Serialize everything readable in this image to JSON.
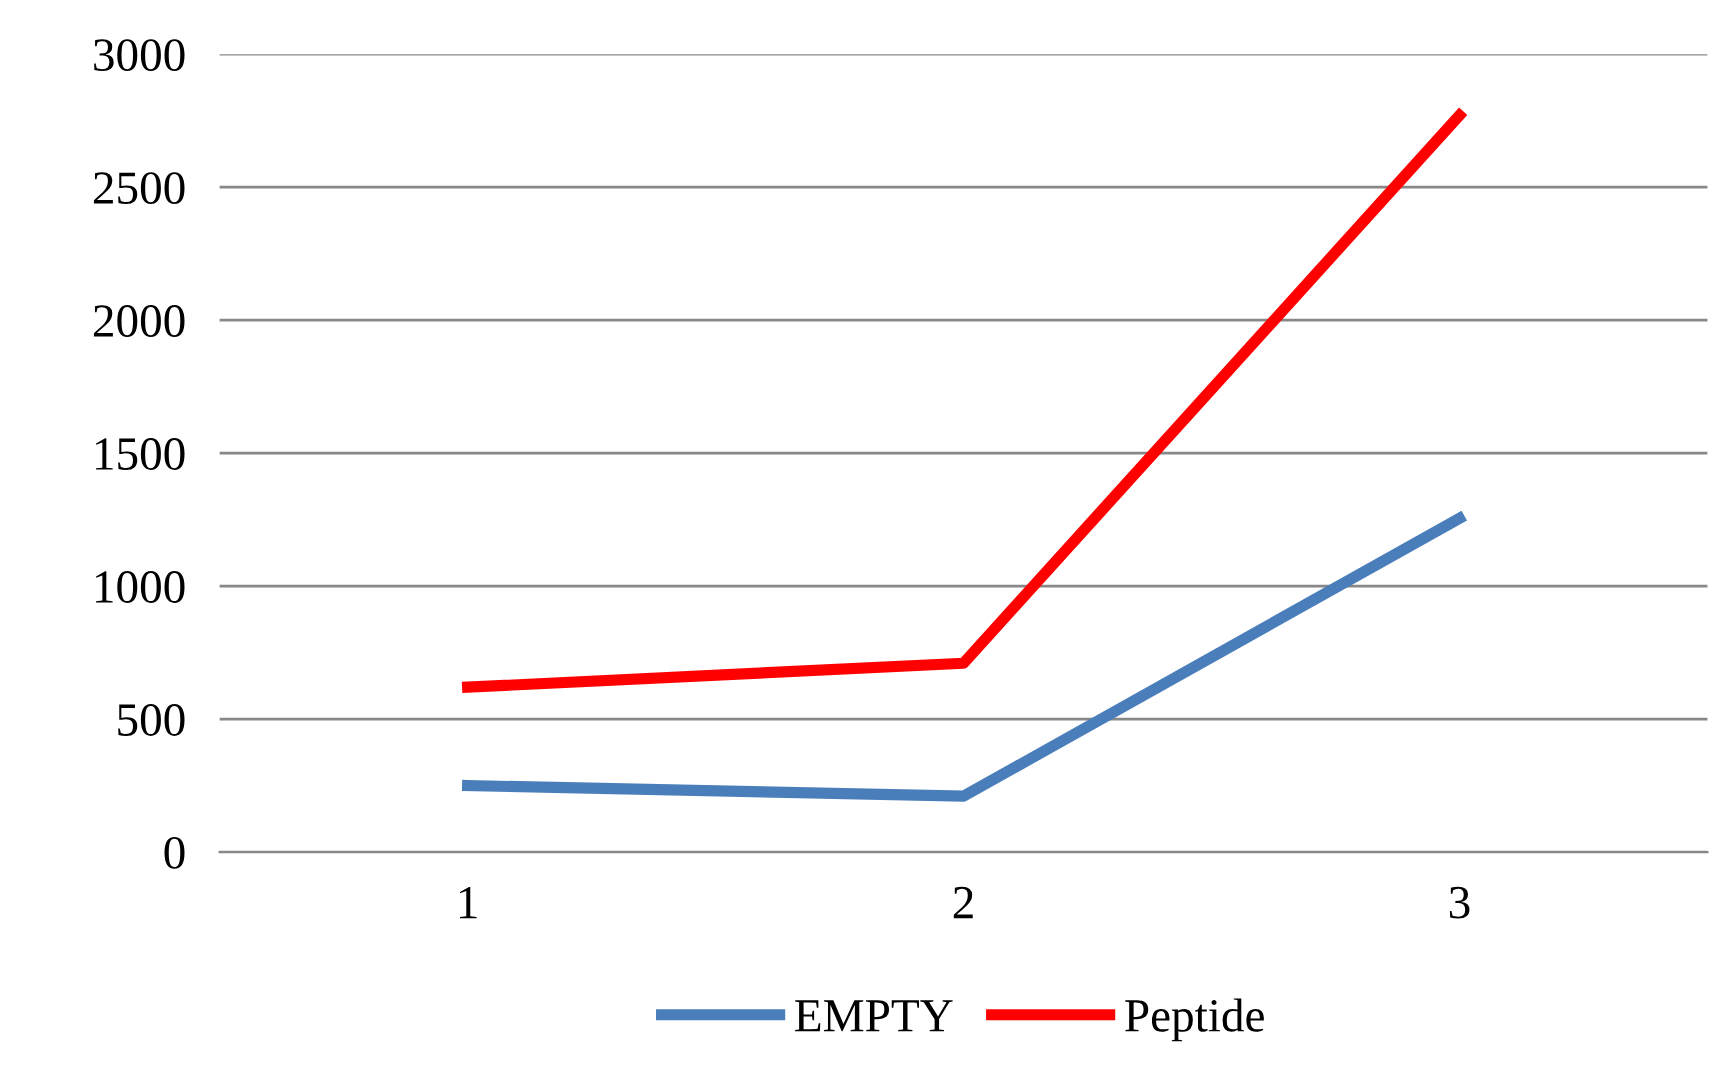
{
  "chart_data": {
    "type": "line",
    "categories": [
      "1",
      "2",
      "3"
    ],
    "series": [
      {
        "name": "EMPTY",
        "color": "#4a7ebb",
        "values": [
          250,
          210,
          1255
        ]
      },
      {
        "name": "Peptide",
        "color": "#ff0000",
        "values": [
          620,
          710,
          2770
        ]
      }
    ],
    "ylim": [
      0,
      3000
    ],
    "yticks": [
      0,
      500,
      1000,
      1500,
      2000,
      2500,
      3000
    ],
    "grid": "y",
    "legend": "bottom",
    "marker": "none",
    "line_style": "solid"
  }
}
